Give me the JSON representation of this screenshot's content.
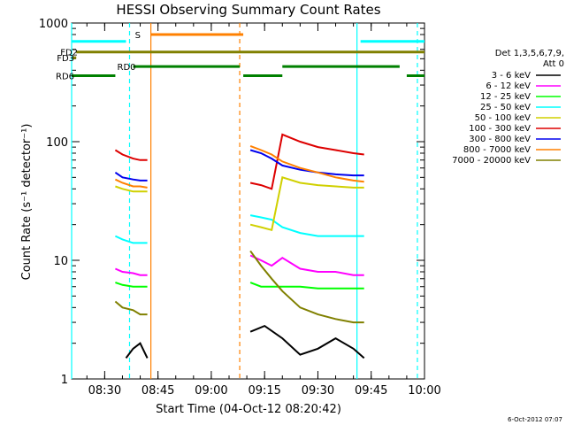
{
  "chart_data": {
    "type": "line",
    "title": "HESSI Observing Summary Count Rates",
    "xlabel": "Start Time (04-Oct-12 08:20:42)",
    "ylabel": "Count Rate (s⁻¹ detector⁻¹)",
    "y_scale": "log",
    "ylim": [
      1,
      1000
    ],
    "xlim": [
      "08:20:42",
      "10:00:00"
    ],
    "x_ticks": [
      "08:30",
      "08:45",
      "09:00",
      "09:15",
      "09:30",
      "09:45",
      "10:00"
    ],
    "y_ticks": [
      "1",
      "10",
      "100",
      "1000"
    ],
    "legend": {
      "placement": "right",
      "header": [
        "Det 1,3,5,6,7,9,",
        "Att 0"
      ],
      "entries": [
        {
          "label": "3 - 6 keV",
          "color": "#000000"
        },
        {
          "label": "6 - 12 keV",
          "color": "#ff00ff"
        },
        {
          "label": "12 - 25 keV",
          "color": "#00ff00"
        },
        {
          "label": "25 - 50 keV",
          "color": "#00ffff"
        },
        {
          "label": "50 - 100 keV",
          "color": "#d0d000"
        },
        {
          "label": "100 - 300 keV",
          "color": "#dd0000"
        },
        {
          "label": "300 - 800 keV",
          "color": "#0000ee"
        },
        {
          "label": "800 - 7000 keV",
          "color": "#ff8000"
        },
        {
          "label": "7000 - 20000 keV",
          "color": "#808000"
        }
      ]
    },
    "flag_bars": [
      {
        "label": "",
        "color": "#00ffff",
        "level": 700,
        "segments": [
          [
            "08:20:42",
            "08:36"
          ],
          [
            "09:42",
            "10:00"
          ]
        ]
      },
      {
        "label": "S",
        "color": "#ff8000",
        "level": 800,
        "segments": [
          [
            "08:43",
            "09:09"
          ]
        ]
      },
      {
        "label": "FD2",
        "color": "#808000",
        "level": 570,
        "segments": [
          [
            "08:22",
            "10:00"
          ]
        ]
      },
      {
        "label": "FD3",
        "color": "#808000",
        "level": 510,
        "segments": [
          [
            "08:21",
            "08:22"
          ]
        ]
      },
      {
        "label": "RD0",
        "color": "#008000",
        "level": 430,
        "segments": [
          [
            "08:38",
            "09:08"
          ],
          [
            "09:20",
            "09:53"
          ]
        ]
      },
      {
        "label": "RD6",
        "color": "#008000",
        "level": 360,
        "segments": [
          [
            "08:20:42",
            "08:33"
          ],
          [
            "09:09",
            "09:20"
          ],
          [
            "09:55",
            "10:00"
          ]
        ]
      }
    ],
    "vertical_markers": [
      {
        "time": "08:20:42",
        "color": "#00ffff",
        "style": "solid"
      },
      {
        "time": "08:37",
        "color": "#00ffff",
        "style": "dashed"
      },
      {
        "time": "08:43",
        "color": "#ff8000",
        "style": "solid"
      },
      {
        "time": "09:08",
        "color": "#ff8000",
        "style": "dashed"
      },
      {
        "time": "09:41",
        "color": "#00ffff",
        "style": "solid"
      },
      {
        "time": "09:58",
        "color": "#00ffff",
        "style": "dashed"
      }
    ],
    "gaps": [
      [
        "08:20:42",
        "08:33"
      ],
      [
        "08:43",
        "09:11"
      ],
      [
        "09:43",
        "10:00"
      ]
    ],
    "series": [
      {
        "name": "3 - 6 keV",
        "color": "#000000",
        "segments": [
          {
            "x": [
              "08:36",
              "08:38",
              "08:40",
              "08:42"
            ],
            "y": [
              1.5,
              1.8,
              2.0,
              1.5
            ]
          },
          {
            "x": [
              "09:11",
              "09:15",
              "09:20",
              "09:25",
              "09:30",
              "09:35",
              "09:40",
              "09:43"
            ],
            "y": [
              2.5,
              2.8,
              2.2,
              1.6,
              1.8,
              2.2,
              1.8,
              1.5
            ]
          }
        ]
      },
      {
        "name": "6 - 12 keV",
        "color": "#ff00ff",
        "segments": [
          {
            "x": [
              "08:33",
              "08:35",
              "08:38",
              "08:40",
              "08:42"
            ],
            "y": [
              8.5,
              8.0,
              7.8,
              7.5,
              7.5
            ]
          },
          {
            "x": [
              "09:11",
              "09:14",
              "09:17",
              "09:20",
              "09:25",
              "09:30",
              "09:35",
              "09:40",
              "09:43"
            ],
            "y": [
              11.0,
              10.0,
              9.0,
              10.5,
              8.5,
              8.0,
              8.0,
              7.5,
              7.5
            ]
          }
        ]
      },
      {
        "name": "12 - 25 keV",
        "color": "#00ff00",
        "segments": [
          {
            "x": [
              "08:33",
              "08:35",
              "08:38",
              "08:40",
              "08:42"
            ],
            "y": [
              6.5,
              6.2,
              6.0,
              6.0,
              6.0
            ]
          },
          {
            "x": [
              "09:11",
              "09:14",
              "09:17",
              "09:20",
              "09:25",
              "09:30",
              "09:35",
              "09:40",
              "09:43"
            ],
            "y": [
              6.5,
              6.0,
              6.0,
              6.0,
              6.0,
              5.8,
              5.8,
              5.8,
              5.8
            ]
          }
        ]
      },
      {
        "name": "25 - 50 keV",
        "color": "#00ffff",
        "segments": [
          {
            "x": [
              "08:33",
              "08:35",
              "08:38",
              "08:40",
              "08:42"
            ],
            "y": [
              16.0,
              15.0,
              14.0,
              14.0,
              14.0
            ]
          },
          {
            "x": [
              "09:11",
              "09:14",
              "09:17",
              "09:20",
              "09:25",
              "09:30",
              "09:35",
              "09:40",
              "09:43"
            ],
            "y": [
              24.0,
              23.0,
              22.0,
              19.0,
              17.0,
              16.0,
              16.0,
              16.0,
              16.0
            ]
          }
        ]
      },
      {
        "name": "50 - 100 keV",
        "color": "#d0d000",
        "segments": [
          {
            "x": [
              "08:33",
              "08:35",
              "08:38",
              "08:40",
              "08:42"
            ],
            "y": [
              42.0,
              40.0,
              38.0,
              38.0,
              38.0
            ]
          },
          {
            "x": [
              "09:11",
              "09:14",
              "09:17",
              "09:20",
              "09:25",
              "09:30",
              "09:35",
              "09:40",
              "09:43"
            ],
            "y": [
              20.0,
              19.0,
              18.0,
              50.0,
              45.0,
              43.0,
              42.0,
              41.0,
              41.0
            ]
          }
        ]
      },
      {
        "name": "100 - 300 keV",
        "color": "#dd0000",
        "segments": [
          {
            "x": [
              "08:33",
              "08:35",
              "08:38",
              "08:40",
              "08:42"
            ],
            "y": [
              85.0,
              78.0,
              72.0,
              70.0,
              70.0
            ]
          },
          {
            "x": [
              "09:11",
              "09:14",
              "09:17",
              "09:20",
              "09:25",
              "09:30",
              "09:35",
              "09:40",
              "09:43"
            ],
            "y": [
              45.0,
              43.0,
              40.0,
              115.0,
              100.0,
              90.0,
              85.0,
              80.0,
              78.0
            ]
          }
        ]
      },
      {
        "name": "300 - 800 keV",
        "color": "#0000ee",
        "segments": [
          {
            "x": [
              "08:33",
              "08:35",
              "08:38",
              "08:40",
              "08:42"
            ],
            "y": [
              55.0,
              50.0,
              48.0,
              47.0,
              47.0
            ]
          },
          {
            "x": [
              "09:11",
              "09:14",
              "09:17",
              "09:20",
              "09:25",
              "09:30",
              "09:35",
              "09:40",
              "09:43"
            ],
            "y": [
              85.0,
              80.0,
              72.0,
              63.0,
              58.0,
              55.0,
              53.0,
              52.0,
              52.0
            ]
          }
        ]
      },
      {
        "name": "800 - 7000 keV",
        "color": "#ff8000",
        "segments": [
          {
            "x": [
              "08:33",
              "08:35",
              "08:38",
              "08:40",
              "08:42"
            ],
            "y": [
              48.0,
              45.0,
              42.0,
              42.0,
              41.0
            ]
          },
          {
            "x": [
              "09:11",
              "09:14",
              "09:17",
              "09:20",
              "09:25",
              "09:30",
              "09:35",
              "09:40",
              "09:43"
            ],
            "y": [
              92.0,
              85.0,
              78.0,
              68.0,
              60.0,
              55.0,
              50.0,
              47.0,
              46.0
            ]
          }
        ]
      },
      {
        "name": "7000 - 20000 keV",
        "color": "#808000",
        "segments": [
          {
            "x": [
              "08:33",
              "08:35",
              "08:38",
              "08:40",
              "08:42"
            ],
            "y": [
              4.5,
              4.0,
              3.8,
              3.5,
              3.5
            ]
          },
          {
            "x": [
              "09:11",
              "09:14",
              "09:17",
              "09:20",
              "09:25",
              "09:30",
              "09:35",
              "09:40",
              "09:43"
            ],
            "y": [
              12.0,
              9.0,
              7.0,
              5.5,
              4.0,
              3.5,
              3.2,
              3.0,
              3.0
            ]
          }
        ]
      }
    ]
  },
  "footer": {
    "timestamp": "6-Oct-2012 07:07"
  }
}
